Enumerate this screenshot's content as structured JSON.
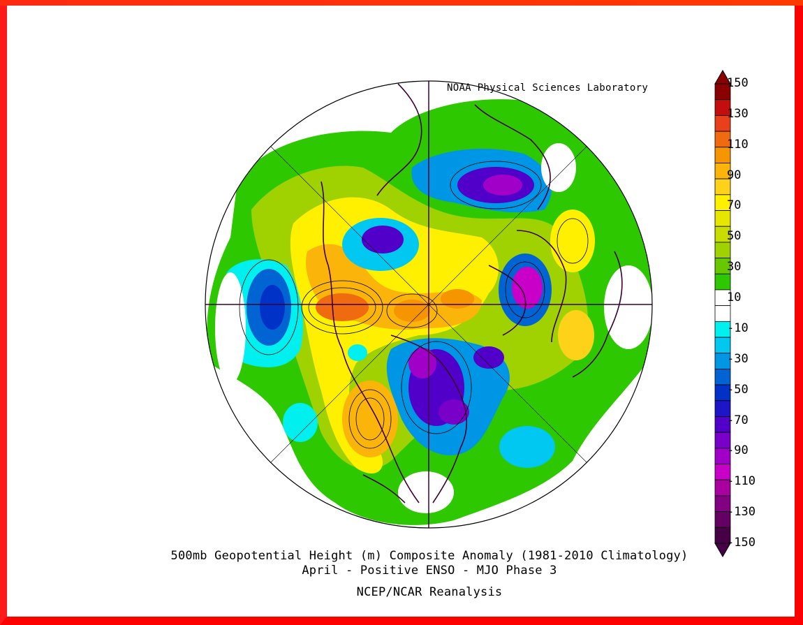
{
  "credit": "NOAA Physical Sciences Laboratory",
  "caption": {
    "line1": "500mb Geopotential Height (m) Composite Anomaly (1981-2010 Climatology)",
    "line2": "April - Positive ENSO - MJO Phase 3",
    "line3": "NCEP/NCAR Reanalysis"
  },
  "colorbar": {
    "labels": [
      "150",
      "130",
      "110",
      "90",
      "70",
      "50",
      "30",
      "10",
      "-10",
      "-30",
      "-50",
      "-70",
      "-90",
      "-110",
      "-130",
      "-150"
    ],
    "colors": [
      "#8b0000",
      "#c40d0d",
      "#e8401a",
      "#f06a0f",
      "#f79500",
      "#fbb40a",
      "#ffd21a",
      "#fff000",
      "#e6e600",
      "#c8dc00",
      "#9fd200",
      "#68c800",
      "#2ec800",
      "#ffffff",
      "#ffffff",
      "#00f0f0",
      "#00c8f0",
      "#0096e6",
      "#0064d2",
      "#0032c8",
      "#1e14c8",
      "#5000c8",
      "#7800c8",
      "#a000c8",
      "#c800c8",
      "#aa00a0",
      "#820082",
      "#640064",
      "#460046"
    ]
  },
  "map": {
    "projection": "north-polar-stereographic",
    "colors": {
      "ocean": "#ffffff",
      "green": "#2ec800",
      "lightgreen": "#68c800",
      "yellow": "#fff000",
      "gold": "#ffd21a",
      "orange": "#f79500",
      "cyan": "#00f0f0",
      "blue": "#0096e6",
      "deepblue": "#0032c8",
      "violet": "#5000c8",
      "purple": "#a000c8",
      "magenta": "#c800c8",
      "coast": "#3c0032"
    }
  }
}
